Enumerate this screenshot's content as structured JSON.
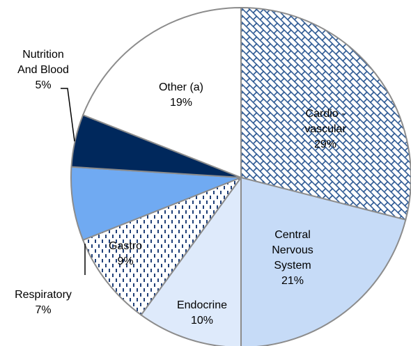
{
  "chart_data": {
    "type": "pie",
    "categories": [
      "Cardio -\nvascular",
      "Central\nNervous\nSystem",
      "Endocrine",
      "Gastro",
      "Respiratory",
      "Nutrition\nAnd Blood",
      "Other (a)"
    ],
    "values": [
      29,
      21,
      10,
      9,
      7,
      5,
      19
    ],
    "value_labels": [
      "29%",
      "21%",
      "10%",
      "9%",
      "7%",
      "5%",
      "19%"
    ],
    "colors": [
      "#ffffff",
      "#c6dbf7",
      "#deeafb",
      "#ffffff",
      "#70aaf2",
      "#00285c",
      "#ffffff"
    ],
    "patterns": [
      "brick",
      null,
      null,
      "dash",
      null,
      null,
      null
    ]
  }
}
